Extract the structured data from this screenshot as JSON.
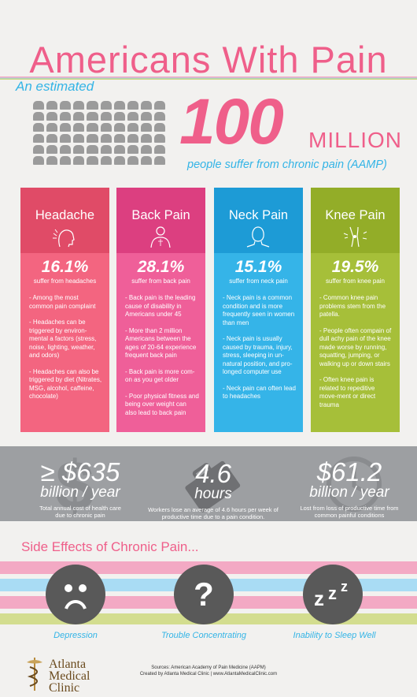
{
  "title": "Americans With Pain",
  "intro": {
    "estimated": "An estimated",
    "number": "100",
    "unit": "MILLION",
    "caption": "people suffer from chronic pain (AAMP)"
  },
  "cards": [
    {
      "title": "Headache",
      "percent": "16.1%",
      "subtitle": "suffer from headaches",
      "points": [
        "-  Among the most common pain complaint",
        "- Headaches can be triggered by environ-mental a factors (stress, noise, lighting, weather, and odors)",
        "- Headaches can also be triggered by diet (Nitrates, MSG, alcohol, caffeine, chocolate)"
      ]
    },
    {
      "title": "Back Pain",
      "percent": "28.1%",
      "subtitle": "suffer from back pain",
      "points": [
        "-  Back pain is the leading cause of disability in Americans under 45",
        "- More than 2 million Americans between the ages of 20-64 experience frequent back pain",
        "- Back pain is more com-on as you get older",
        "- Poor physical fitness and being over weight can also lead to back pain"
      ]
    },
    {
      "title": "Neck Pain",
      "percent": "15.1%",
      "subtitle": "suffer from neck pain",
      "points": [
        "- Neck pain is a common condition and is more frequently seen in women than men",
        "- Neck pain is usually caused by trauma, injury, stress, sleeping in un-natural position, and pro-longed computer use",
        "- Neck pain can often lead to headaches"
      ]
    },
    {
      "title": "Knee Pain",
      "percent": "19.5%",
      "subtitle": "suffer from knee pain",
      "points": [
        "- Common knee pain problems stem from the patella.",
        "- People often compain of dull achy pain of the knee made worse by running, squatting, jumping, or walking up or down stairs",
        "- Often knee pain is related to repeditive move-ment or direct trauma"
      ]
    }
  ],
  "stats": [
    {
      "value": "≥ $635",
      "unit": "billion / year",
      "desc": "Total annual cost of health care due to chronic pain"
    },
    {
      "value": "4.6",
      "unit": "hours",
      "desc": "Workers lose an average of 4.6 hours per week of productive time due to a pain condition."
    },
    {
      "value": "$61.2",
      "unit": "billion / year",
      "desc": "Lost from loss of productive time from common painful conditions"
    }
  ],
  "side_effects": {
    "title": "Side Effects of Chronic Pain...",
    "items": [
      {
        "label": "Depression",
        "icon": "sad-face-icon"
      },
      {
        "label": "Trouble Concentrating",
        "icon": "question-mark-icon"
      },
      {
        "label": "Inability to Sleep Well",
        "icon": "zzz-sleep-icon"
      }
    ]
  },
  "footer": {
    "logo_line1": "Atlanta",
    "logo_line2": "Medical",
    "logo_line3": "Clinic",
    "sources": "Sources: American Academy of Pain Medicine (AAPM)",
    "created": "Created by Atlanta Medical Clinic  |  www.AtlantaMedicalClinic.com"
  },
  "colors": {
    "pink": "#ef5f8a",
    "blue": "#33b4e6",
    "headache": "#f36580",
    "back": "#ef5f99",
    "neck": "#35b4e8",
    "knee": "#a6bf39",
    "band": "#9d9fa2"
  }
}
